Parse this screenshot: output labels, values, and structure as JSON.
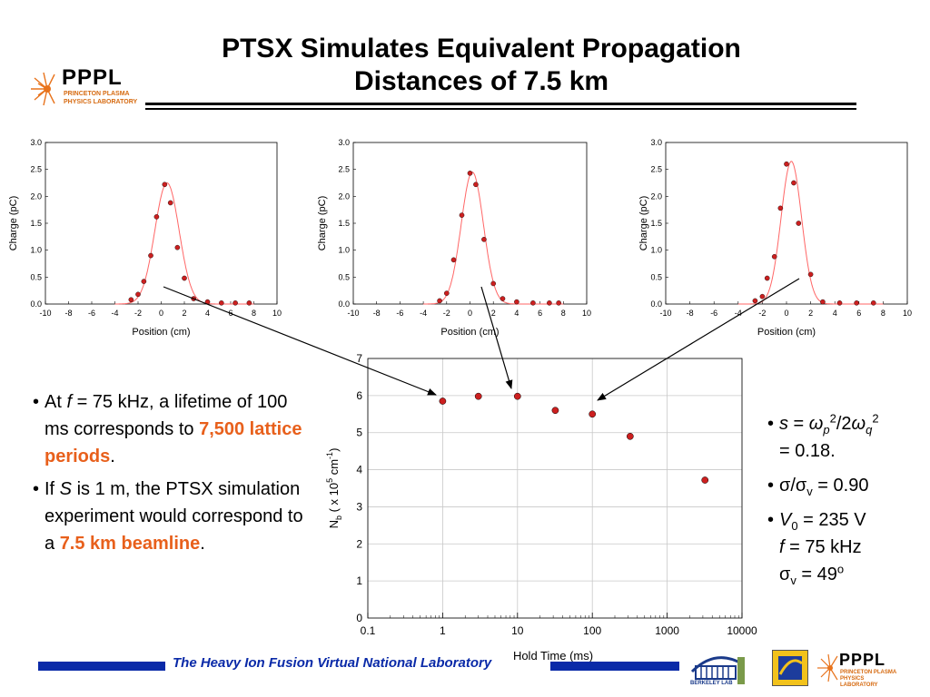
{
  "title_line1": "PTSX Simulates Equivalent Propagation",
  "title_line2": "Distances of 7.5 km",
  "logo": {
    "name": "PPPL",
    "line1": "PRINCETON PLASMA",
    "line2": "PHYSICS LABORATORY"
  },
  "left_bullets": {
    "b1": {
      "p1": "At ",
      "f": "f",
      "p2": " = 75 kHz, a lifetime of 100 ms corresponds to ",
      "hl": "7,500 lattice periods",
      "p3": "."
    },
    "b2": {
      "p1": "If ",
      "s": "S",
      "p2": " is 1 m, the PTSX simulation experiment would correspond to a ",
      "hl": "7.5 km beamline",
      "p3": "."
    }
  },
  "right_bullets": {
    "b1": {
      "s": "s",
      "eq": " = ",
      "omega": "ω",
      "p": "p",
      "two": "2",
      "slash2": "/2",
      "q": "q",
      "result": "= 0.18."
    },
    "b2": {
      "sigma": "σ",
      "slash": "/",
      "v": "v",
      "result": " = 0.90"
    },
    "b3": {
      "V": "V",
      "zero": "0",
      "v0": " = 235 V",
      "f": "f",
      "fval": " = 75 kHz",
      "sigma": "σ",
      "v": "v",
      "sv": " = 49",
      "deg": "o"
    }
  },
  "footer": {
    "text": "The Heavy Ion Fusion Virtual National Laboratory",
    "berkeley": "BERKELEY LAB"
  },
  "colors": {
    "marker": "#cc1f1f",
    "curve": "#ff6666",
    "highlight": "#e8601c",
    "footer_blue": "#0a2aa8"
  },
  "chart_data": [
    {
      "type": "scatter",
      "xlabel": "Position (cm)",
      "ylabel": "Charge (pC)",
      "xlim": [
        -10,
        10
      ],
      "ylim": [
        0,
        3.0
      ],
      "xticks": [
        -10,
        -8,
        -6,
        -4,
        -2,
        0,
        2,
        4,
        6,
        8,
        10
      ],
      "yticks": [
        0.0,
        0.5,
        1.0,
        1.5,
        2.0,
        2.5,
        3.0
      ],
      "points": [
        [
          -2.6,
          0.08
        ],
        [
          -2.0,
          0.18
        ],
        [
          -1.5,
          0.42
        ],
        [
          -0.9,
          0.9
        ],
        [
          -0.4,
          1.62
        ],
        [
          0.3,
          2.22
        ],
        [
          0.8,
          1.88
        ],
        [
          1.4,
          1.05
        ],
        [
          2.0,
          0.48
        ],
        [
          2.8,
          0.1
        ],
        [
          4.0,
          0.04
        ],
        [
          5.2,
          0.02
        ],
        [
          6.4,
          0.02
        ],
        [
          7.6,
          0.02
        ]
      ],
      "fit": {
        "amplitude": 2.25,
        "center": 0.5,
        "sigma": 1.05
      }
    },
    {
      "type": "scatter",
      "xlabel": "Position (cm)",
      "ylabel": "Charge (pC)",
      "xlim": [
        -10,
        10
      ],
      "ylim": [
        0,
        3.0
      ],
      "xticks": [
        -10,
        -8,
        -6,
        -4,
        -2,
        0,
        2,
        4,
        6,
        8,
        10
      ],
      "yticks": [
        0.0,
        0.5,
        1.0,
        1.5,
        2.0,
        2.5,
        3.0
      ],
      "points": [
        [
          -2.6,
          0.06
        ],
        [
          -2.0,
          0.2
        ],
        [
          -1.4,
          0.82
        ],
        [
          -0.7,
          1.65
        ],
        [
          0.0,
          2.43
        ],
        [
          0.5,
          2.22
        ],
        [
          1.2,
          1.2
        ],
        [
          2.0,
          0.38
        ],
        [
          2.8,
          0.1
        ],
        [
          4.0,
          0.04
        ],
        [
          5.4,
          0.02
        ],
        [
          6.8,
          0.02
        ],
        [
          7.6,
          0.02
        ]
      ],
      "fit": {
        "amplitude": 2.45,
        "center": 0.2,
        "sigma": 0.95
      }
    },
    {
      "type": "scatter",
      "xlabel": "Position (cm)",
      "ylabel": "Charge (pC)",
      "xlim": [
        -10,
        10
      ],
      "ylim": [
        0,
        3.0
      ],
      "xticks": [
        -10,
        -8,
        -6,
        -4,
        -2,
        0,
        2,
        4,
        6,
        8,
        10
      ],
      "yticks": [
        0.0,
        0.5,
        1.0,
        1.5,
        2.0,
        2.5,
        3.0
      ],
      "points": [
        [
          -2.6,
          0.06
        ],
        [
          -2.0,
          0.14
        ],
        [
          -1.6,
          0.48
        ],
        [
          -1.0,
          0.88
        ],
        [
          -0.5,
          1.78
        ],
        [
          0.0,
          2.6
        ],
        [
          0.6,
          2.25
        ],
        [
          1.0,
          1.5
        ],
        [
          2.0,
          0.55
        ],
        [
          3.0,
          0.04
        ],
        [
          4.4,
          0.02
        ],
        [
          5.8,
          0.02
        ],
        [
          7.2,
          0.02
        ]
      ],
      "fit": {
        "amplitude": 2.65,
        "center": 0.4,
        "sigma": 0.85
      }
    },
    {
      "type": "scatter",
      "xlabel": "Hold Time (ms)",
      "ylabel_parts": [
        "N",
        "b",
        " ( x 10",
        "5",
        " cm",
        "-1",
        ")"
      ],
      "xscale": "log",
      "xlim": [
        0.1,
        10000
      ],
      "ylim": [
        0,
        7
      ],
      "xticks": [
        "0.1",
        "1",
        "10",
        "100",
        "1000",
        "10000"
      ],
      "yticks": [
        0,
        1,
        2,
        3,
        4,
        5,
        6,
        7
      ],
      "grid": true,
      "points": [
        [
          1,
          5.85
        ],
        [
          3,
          5.98
        ],
        [
          10,
          5.98
        ],
        [
          32,
          5.6
        ],
        [
          100,
          5.5
        ],
        [
          320,
          4.9
        ],
        [
          3200,
          3.72
        ]
      ]
    }
  ]
}
